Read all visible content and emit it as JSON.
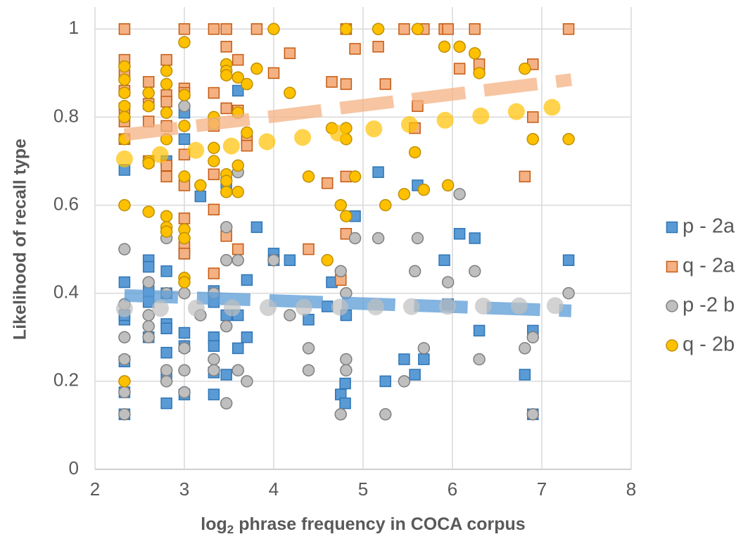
{
  "chart_data": {
    "type": "scatter",
    "ylabel": "Likelihood of recall type",
    "xlabel": [
      "log",
      "2",
      " phrase frequency in COCA corpus"
    ],
    "xlim": [
      2,
      8
    ],
    "xticks": [
      2,
      3,
      4,
      5,
      6,
      7,
      8
    ],
    "ylim": [
      0,
      1.05
    ],
    "yticks": [
      0,
      0.2,
      0.4,
      0.6,
      0.8,
      1
    ],
    "grid": true,
    "legend": "right",
    "series": [
      {
        "name": "p - 2a",
        "marker": "square",
        "color": "#5b9bd5",
        "edgecolor": "#2e75b6",
        "trend_style": "dash",
        "x": [
          2.33,
          2.33,
          2.33,
          2.33,
          2.33,
          2.33,
          2.33,
          2.6,
          2.6,
          2.6,
          2.6,
          2.6,
          2.8,
          2.8,
          2.8,
          2.8,
          2.8,
          2.8,
          2.8,
          2.8,
          3,
          3,
          3,
          3,
          3,
          3,
          3.18,
          3.33,
          3.33,
          3.33,
          3.33,
          3.33,
          3.33,
          3.47,
          3.47,
          3.47,
          3.6,
          3.6,
          3.6,
          3.7,
          3.7,
          3.81,
          4,
          4,
          4.18,
          4.39,
          4.6,
          4.65,
          4.75,
          4.8,
          4.8,
          4.81,
          4.91,
          5.17,
          5.25,
          5.46,
          5.58,
          5.61,
          5.68,
          5.91,
          5.95,
          6.08,
          6.25,
          6.3,
          6.81,
          6.9,
          6.9,
          7.3
        ],
        "values": [
          0.68,
          0.425,
          0.34,
          0.35,
          0.245,
          0.175,
          0.125,
          0.475,
          0.46,
          0.405,
          0.38,
          0.3,
          0.7,
          0.45,
          0.4,
          0.33,
          0.32,
          0.265,
          0.21,
          0.15,
          0.81,
          0.75,
          0.49,
          0.31,
          0.28,
          0.17,
          0.62,
          0.405,
          0.38,
          0.3,
          0.28,
          0.22,
          0.17,
          0.65,
          0.35,
          0.215,
          0.86,
          0.35,
          0.275,
          0.43,
          0.3,
          0.55,
          0.49,
          0.475,
          0.475,
          0.34,
          0.37,
          0.425,
          0.17,
          0.15,
          0.195,
          0.35,
          0.575,
          0.675,
          0.2,
          0.25,
          0.215,
          0.645,
          0.25,
          0.475,
          0.375,
          0.535,
          0.525,
          0.315,
          0.215,
          0.315,
          0.125,
          0.475
        ],
        "trend": {
          "x": [
            2.33,
            7.33
          ],
          "y": [
            0.395,
            0.36
          ]
        }
      },
      {
        "name": "q - 2a",
        "marker": "square",
        "color": "#f4b183",
        "edgecolor": "#c55a11",
        "trend_style": "dash",
        "x": [
          2.33,
          2.33,
          2.33,
          2.33,
          2.33,
          2.33,
          2.33,
          2.6,
          2.6,
          2.6,
          2.6,
          2.8,
          2.8,
          2.8,
          2.8,
          2.8,
          2.8,
          3,
          3,
          3,
          3,
          3,
          3,
          3,
          3,
          3.33,
          3.33,
          3.33,
          3.33,
          3.33,
          3.33,
          3.47,
          3.47,
          3.47,
          3.47,
          3.6,
          3.6,
          3.6,
          3.7,
          3.7,
          3.81,
          4,
          4.18,
          4.39,
          4.6,
          4.65,
          4.75,
          4.81,
          4.81,
          4.81,
          4.81,
          4.91,
          5.17,
          5.25,
          5.46,
          5.58,
          5.61,
          5.68,
          5.91,
          5.95,
          6.08,
          6.25,
          6.3,
          6.81,
          6.9,
          6.9,
          7.3
        ],
        "values": [
          1,
          0.93,
          0.895,
          0.86,
          0.82,
          0.79,
          0.75,
          0.88,
          0.83,
          0.79,
          0.7,
          0.93,
          0.85,
          0.835,
          0.78,
          0.69,
          0.665,
          1,
          0.865,
          0.855,
          0.715,
          0.645,
          0.57,
          0.505,
          0.49,
          1,
          0.855,
          0.78,
          0.67,
          0.59,
          0.445,
          1,
          0.96,
          0.82,
          0.53,
          0.93,
          0.815,
          0.5,
          0.75,
          0.735,
          1,
          0.9,
          0.945,
          0.5,
          0.65,
          0.88,
          0.43,
          1,
          0.875,
          0.665,
          0.535,
          0.955,
          0.96,
          0.875,
          1,
          0.775,
          0.825,
          1,
          1,
          1,
          0.91,
          1,
          0.92,
          0.665,
          0.92,
          0.8,
          1
        ],
        "trend": {
          "x": [
            2.33,
            7.33
          ],
          "y": [
            0.76,
            0.885
          ]
        }
      },
      {
        "name": "p -2 b",
        "marker": "circle",
        "color": "#bfbfbf",
        "edgecolor": "#7f7f7f",
        "trend_style": "dot",
        "x": [
          2.33,
          2.33,
          2.33,
          2.33,
          2.33,
          2.33,
          2.6,
          2.6,
          2.6,
          2.6,
          2.8,
          2.8,
          2.8,
          2.8,
          3,
          3,
          3,
          3,
          3,
          3,
          3.18,
          3.33,
          3.33,
          3.33,
          3.47,
          3.47,
          3.47,
          3.47,
          3.6,
          3.6,
          3.6,
          3.7,
          4,
          4.18,
          4.39,
          4.39,
          4.75,
          4.75,
          4.81,
          4.81,
          4.81,
          4.91,
          5.17,
          5.25,
          5.46,
          5.58,
          5.61,
          5.68,
          5.95,
          6.08,
          6.25,
          6.3,
          6.81,
          6.9,
          6.9,
          7.3
        ],
        "values": [
          0.5,
          0.375,
          0.3,
          0.25,
          0.175,
          0.125,
          0.425,
          0.35,
          0.325,
          0.3,
          0.525,
          0.4,
          0.225,
          0.2,
          0.825,
          0.525,
          0.4,
          0.275,
          0.225,
          0.175,
          0.35,
          0.4,
          0.25,
          0.225,
          0.55,
          0.475,
          0.325,
          0.15,
          0.675,
          0.475,
          0.225,
          0.2,
          0.475,
          0.35,
          0.275,
          0.225,
          0.45,
          0.125,
          0.4,
          0.25,
          0.225,
          0.525,
          0.525,
          0.125,
          0.2,
          0.45,
          0.525,
          0.275,
          0.425,
          0.625,
          0.45,
          0.25,
          0.275,
          0.3,
          0.125,
          0.4
        ],
        "trend": {
          "x": [
            2.33,
            7.23
          ],
          "y": [
            0.365,
            0.372
          ]
        }
      },
      {
        "name": "q - 2b",
        "marker": "circle",
        "color": "#ffc000",
        "edgecolor": "#bf9000",
        "trend_style": "dot",
        "x": [
          2.33,
          2.33,
          2.33,
          2.33,
          2.33,
          2.33,
          2.33,
          2.33,
          2.6,
          2.6,
          2.6,
          2.6,
          2.6,
          2.8,
          2.8,
          2.8,
          2.8,
          2.8,
          2.8,
          2.8,
          3,
          3,
          3,
          3,
          3,
          3,
          3,
          3,
          3.18,
          3.33,
          3.33,
          3.33,
          3.33,
          3.47,
          3.47,
          3.47,
          3.47,
          3.47,
          3.47,
          3.6,
          3.6,
          3.6,
          3.6,
          3.7,
          3.7,
          3.81,
          4,
          4.18,
          4.39,
          4.6,
          4.65,
          4.75,
          4.81,
          4.81,
          4.81,
          4.81,
          4.91,
          5.17,
          5.25,
          5.46,
          5.58,
          5.61,
          5.68,
          5.91,
          5.95,
          6.08,
          6.25,
          6.3,
          6.81,
          6.9,
          7.3
        ],
        "values": [
          0.915,
          0.885,
          0.855,
          0.825,
          0.8,
          0.75,
          0.6,
          0.2,
          0.855,
          0.825,
          0.7,
          0.695,
          0.585,
          0.905,
          0.875,
          0.81,
          0.75,
          0.575,
          0.55,
          0.54,
          0.97,
          0.85,
          0.78,
          0.665,
          0.545,
          0.525,
          0.435,
          0.425,
          0.645,
          0.8,
          0.785,
          0.73,
          0.7,
          0.92,
          0.905,
          0.895,
          0.67,
          0.655,
          0.63,
          0.89,
          0.81,
          0.69,
          0.63,
          0.875,
          0.765,
          0.91,
          1,
          0.855,
          0.665,
          0.475,
          0.775,
          0.6,
          1,
          0.775,
          0.75,
          0.575,
          0.665,
          1,
          0.6,
          0.625,
          0.72,
          1,
          0.635,
          0.96,
          0.645,
          0.96,
          0.945,
          0.9,
          0.91,
          0.75,
          0.75
        ],
        "trend": {
          "x": [
            2.33,
            7.23
          ],
          "y": [
            0.705,
            0.825
          ]
        }
      }
    ]
  }
}
